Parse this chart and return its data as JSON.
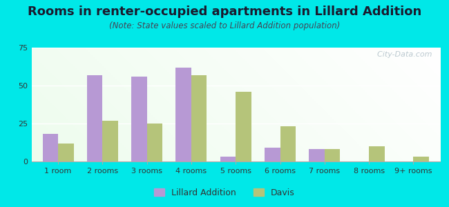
{
  "title": "Rooms in renter-occupied apartments in Lillard Addition",
  "subtitle": "(Note: State values scaled to Lillard Addition population)",
  "categories": [
    "1 room",
    "2 rooms",
    "3 rooms",
    "4 rooms",
    "5 rooms",
    "6 rooms",
    "7 rooms",
    "8 rooms",
    "9+ rooms"
  ],
  "lillard_values": [
    18,
    57,
    56,
    62,
    3,
    9,
    8,
    0,
    0
  ],
  "davis_values": [
    12,
    27,
    25,
    57,
    46,
    23,
    8,
    10,
    3
  ],
  "lillard_color": "#b799d4",
  "davis_color": "#b5c47a",
  "ylim": [
    0,
    75
  ],
  "yticks": [
    0,
    25,
    50,
    75
  ],
  "bar_width": 0.35,
  "bg_color": "#00e8e8",
  "watermark": "  City-Data.com",
  "legend_labels": [
    "Lillard Addition",
    "Davis"
  ],
  "title_fontsize": 13,
  "subtitle_fontsize": 8.5,
  "tick_fontsize": 8,
  "legend_fontsize": 9
}
